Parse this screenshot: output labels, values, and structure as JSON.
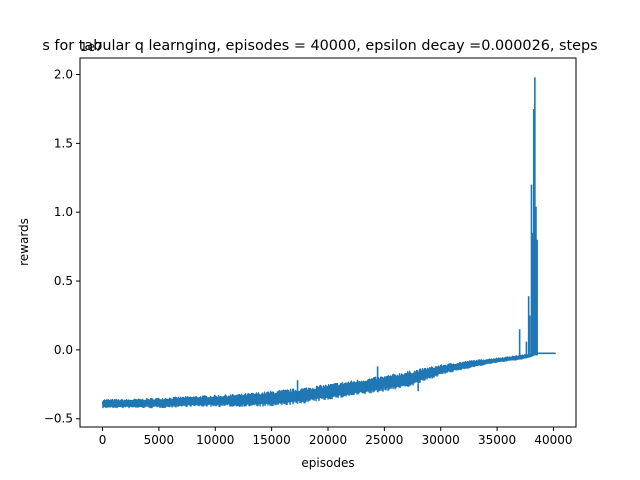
{
  "chart_data": {
    "type": "line",
    "title": "s for tabular q learnging, episodes = 40000, epsilon decay =0.000026, steps",
    "xlabel": "episodes",
    "ylabel": "rewards",
    "offset_label": "1e7",
    "xlim": [
      -2000,
      42000
    ],
    "ylim": [
      -0.56,
      2.12
    ],
    "x_ticks": [
      0,
      5000,
      10000,
      15000,
      20000,
      25000,
      30000,
      35000,
      40000
    ],
    "x_tick_labels": [
      "0",
      "5000",
      "10000",
      "15000",
      "20000",
      "25000",
      "30000",
      "35000",
      "40000"
    ],
    "y_ticks": [
      -0.5,
      0.0,
      0.5,
      1.0,
      1.5,
      2.0
    ],
    "y_tick_labels": [
      "−0.5",
      "0.0",
      "0.5",
      "1.0",
      "1.5",
      "2.0"
    ],
    "grid": false,
    "line_color": "#1f77b4",
    "series": [
      {
        "band": {
          "x": [
            0,
            2500,
            5000,
            7500,
            10000,
            12500,
            15000,
            17500,
            20000,
            22500,
            25000,
            27500,
            30000,
            32500,
            35000,
            37000,
            38000,
            38300
          ],
          "upper": [
            -0.36,
            -0.36,
            -0.35,
            -0.34,
            -0.33,
            -0.32,
            -0.3,
            -0.28,
            -0.25,
            -0.22,
            -0.19,
            -0.15,
            -0.11,
            -0.08,
            -0.06,
            -0.04,
            -0.03,
            -0.02
          ],
          "lower": [
            -0.42,
            -0.42,
            -0.42,
            -0.41,
            -0.41,
            -0.41,
            -0.41,
            -0.39,
            -0.36,
            -0.33,
            -0.3,
            -0.26,
            -0.18,
            -0.13,
            -0.09,
            -0.07,
            -0.05,
            -0.04
          ]
        },
        "spikes": [
          {
            "x": 11900,
            "y": -0.33
          },
          {
            "x": 17300,
            "y": -0.22
          },
          {
            "x": 24400,
            "y": -0.12
          },
          {
            "x": 28000,
            "y": -0.3
          },
          {
            "x": 37000,
            "y": 0.15
          },
          {
            "x": 37600,
            "y": 0.06
          },
          {
            "x": 37800,
            "y": 0.39
          },
          {
            "x": 37900,
            "y": 0.25
          },
          {
            "x": 38050,
            "y": 1.2
          },
          {
            "x": 38150,
            "y": 0.85
          },
          {
            "x": 38250,
            "y": 1.75
          },
          {
            "x": 38350,
            "y": 1.98
          },
          {
            "x": 38450,
            "y": 1.04
          },
          {
            "x": 38550,
            "y": 0.8
          }
        ],
        "tail": {
          "x": [
            38600,
            40200
          ],
          "y": [
            -0.025,
            -0.025
          ]
        }
      }
    ]
  }
}
